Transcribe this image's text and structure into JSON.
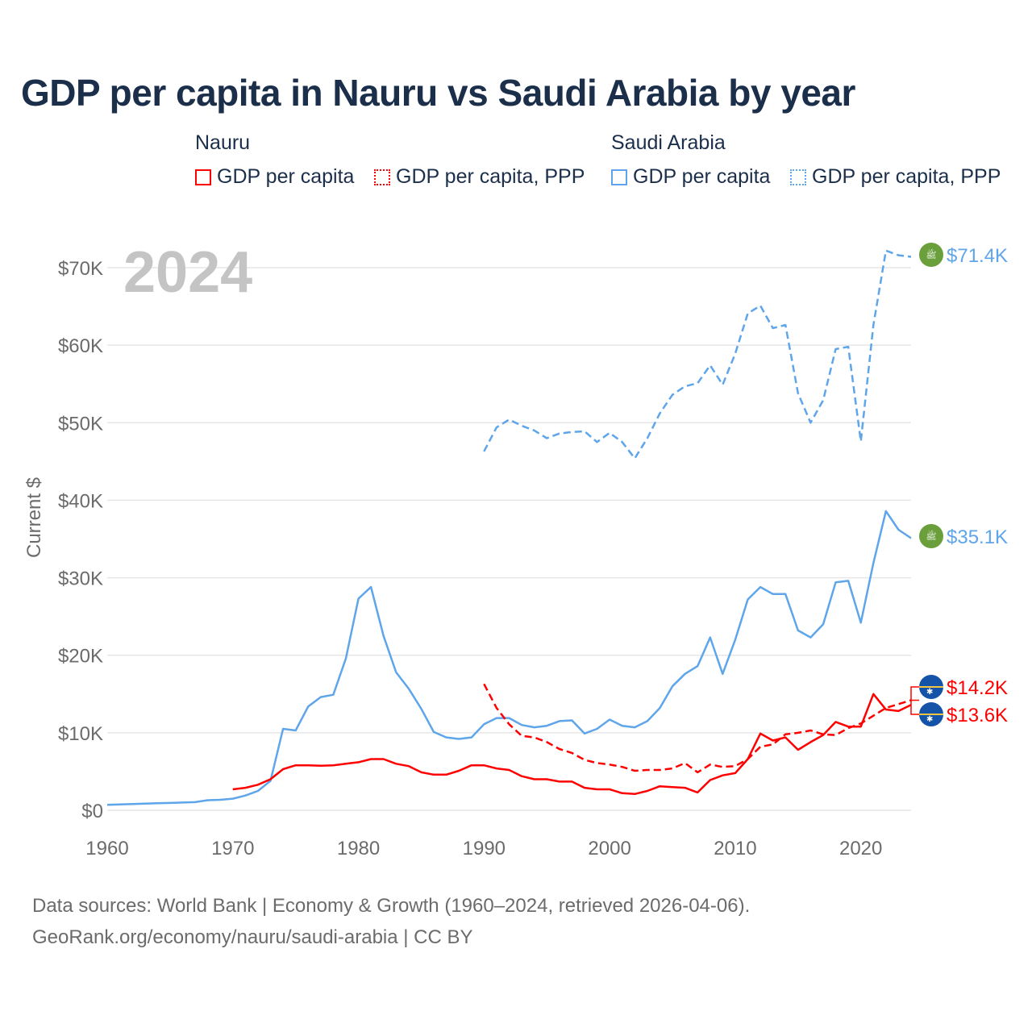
{
  "title": "GDP per capita in Nauru vs Saudi Arabia by year",
  "legend": {
    "groups": [
      {
        "name": "Nauru",
        "items": [
          "GDP per capita",
          "GDP per capita, PPP"
        ]
      },
      {
        "name": "Saudi Arabia",
        "items": [
          "GDP per capita",
          "GDP per capita, PPP"
        ]
      }
    ]
  },
  "footer": {
    "line1": "Data sources: World Bank | Economy & Growth (1960–2024, retrieved 2026-04-06).",
    "line2": "GeoRank.org/economy/nauru/saudi-arabia | CC BY"
  },
  "chart_data": {
    "type": "line",
    "title": "GDP per capita in Nauru vs Saudi Arabia by year",
    "year_label": "2024",
    "ylabel": "Current $",
    "xlim": [
      1960,
      2024
    ],
    "ylim": [
      0,
      70000
    ],
    "xticks": [
      "1960",
      "1970",
      "1980",
      "1990",
      "2000",
      "2010",
      "2020"
    ],
    "yticks": [
      "$0",
      "$10K",
      "$20K",
      "$30K",
      "$40K",
      "$50K",
      "$60K",
      "$70K"
    ],
    "grid": true,
    "legend_position": "top",
    "colors": {
      "nauru": "#ff0000",
      "saudi": "#5ea5ea",
      "saudi_badge": "#6a9f3c",
      "nauru_badge": "#1553a8"
    },
    "series": [
      {
        "name": "Saudi Arabia GDP per capita",
        "country": "saudi",
        "dashed": false,
        "start": 1960,
        "end_label": "$35.1K",
        "values": [
          0.7,
          0.75,
          0.8,
          0.85,
          0.9,
          0.95,
          1.0,
          1.05,
          1.3,
          1.35,
          1.5,
          1.9,
          2.5,
          3.8,
          10.5,
          10.3,
          13.4,
          14.6,
          14.9,
          19.6,
          27.3,
          28.8,
          22.5,
          17.8,
          15.7,
          13.1,
          10.1,
          9.4,
          9.2,
          9.4,
          11.1,
          11.9,
          11.9,
          11.0,
          10.7,
          10.9,
          11.5,
          11.6,
          9.9,
          10.5,
          11.7,
          10.9,
          10.7,
          11.5,
          13.2,
          16.0,
          17.6,
          18.6,
          22.3,
          17.6,
          22.0,
          27.2,
          28.8,
          27.9,
          27.9,
          23.2,
          22.3,
          24.0,
          29.4,
          29.6,
          24.2,
          31.9,
          38.6,
          36.2,
          35.1
        ]
      },
      {
        "name": "Saudi Arabia GDP per capita, PPP",
        "country": "saudi",
        "dashed": true,
        "start": 1990,
        "end_label": "$71.4K",
        "values": [
          46.3,
          49.4,
          50.4,
          49.6,
          49.0,
          48.0,
          48.6,
          48.8,
          48.9,
          47.5,
          48.7,
          47.5,
          45.4,
          48.0,
          51.2,
          53.6,
          54.7,
          55.1,
          57.4,
          54.9,
          58.9,
          64.1,
          65.1,
          62.2,
          62.6,
          53.8,
          50.0,
          52.9,
          59.5,
          59.8,
          47.6,
          62.6,
          72.2,
          71.6,
          71.4
        ]
      },
      {
        "name": "Nauru GDP per capita",
        "country": "nauru",
        "dashed": false,
        "start": 1970,
        "end_label": "$13.6K",
        "values": [
          2.7,
          2.9,
          3.3,
          4.0,
          5.3,
          5.8,
          5.8,
          5.75,
          5.8,
          6.0,
          6.2,
          6.6,
          6.6,
          6.0,
          5.7,
          4.9,
          4.6,
          4.6,
          5.1,
          5.8,
          5.8,
          5.4,
          5.2,
          4.4,
          4.0,
          4.0,
          3.7,
          3.7,
          2.9,
          2.7,
          2.7,
          2.2,
          2.1,
          2.5,
          3.1,
          3.0,
          2.9,
          2.3,
          3.9,
          4.5,
          4.8,
          6.6,
          9.9,
          9.0,
          9.4,
          7.8,
          8.8,
          9.7,
          11.4,
          10.8,
          10.8,
          15.0,
          13.0,
          12.8,
          13.6
        ]
      },
      {
        "name": "Nauru GDP per capita, PPP",
        "country": "nauru",
        "dashed": true,
        "start": 1990,
        "end_label": "$14.2K",
        "values": [
          16.3,
          13.2,
          11.1,
          9.6,
          9.4,
          8.8,
          7.9,
          7.4,
          6.5,
          6.1,
          5.9,
          5.6,
          5.1,
          5.2,
          5.2,
          5.4,
          6.1,
          4.9,
          5.9,
          5.6,
          5.7,
          6.6,
          8.2,
          8.5,
          9.8,
          10.0,
          10.3,
          9.8,
          9.7,
          10.6,
          11.2,
          12.2,
          13.2,
          13.7,
          14.2
        ]
      }
    ],
    "value_units": "thousands USD"
  }
}
